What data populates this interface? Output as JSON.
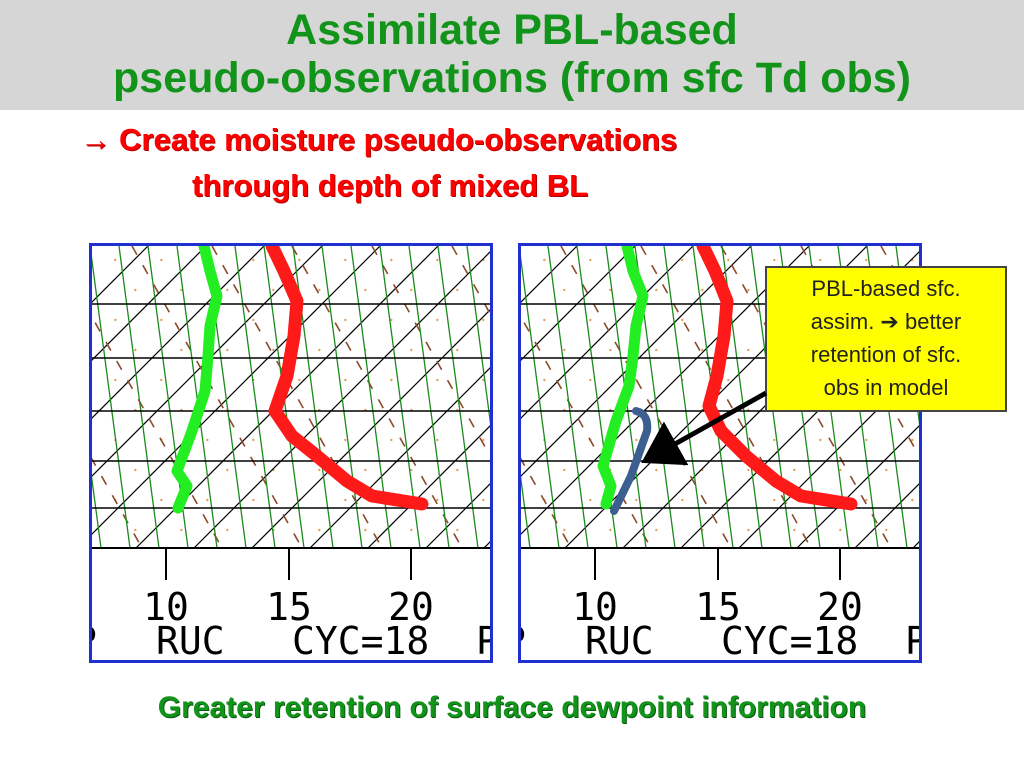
{
  "title": {
    "line1": "Assimilate PBL-based",
    "line2": "pseudo-observations (from sfc Td obs)"
  },
  "subtitle": {
    "arrow": "→",
    "line1": "Create moisture pseudo-observations",
    "line2": "through depth of mixed BL"
  },
  "panels": [
    {
      "tick_labels": [
        "10",
        "15",
        "20"
      ],
      "caption_left": "RUC",
      "caption_right": "CYC=18",
      "edge_char_left": "P",
      "edge_char_right": "P"
    },
    {
      "tick_labels": [
        "10",
        "15",
        "20"
      ],
      "caption_left": "RUC",
      "caption_right": "CYC=18",
      "edge_char_left": "P",
      "edge_char_right": "P"
    }
  ],
  "callout": {
    "lines": [
      "PBL-based sfc.",
      "assim.  ➔  better",
      "retention of sfc.",
      "obs in model"
    ]
  },
  "footer": "Greater retention of surface dewpoint  information",
  "colors": {
    "title_green": "#12931a",
    "subtitle_red": "#ff0000",
    "dewpoint_green": "#22ee22",
    "temperature_red": "#ff1a1a",
    "pbl_profile_blue": "#3d5f8f",
    "isotherm_green": "#1a8a1a",
    "dry_adiabat_brown": "#8b4a2b",
    "panel_border": "#1f2fd0",
    "callout_yellow": "#ffff00"
  }
}
